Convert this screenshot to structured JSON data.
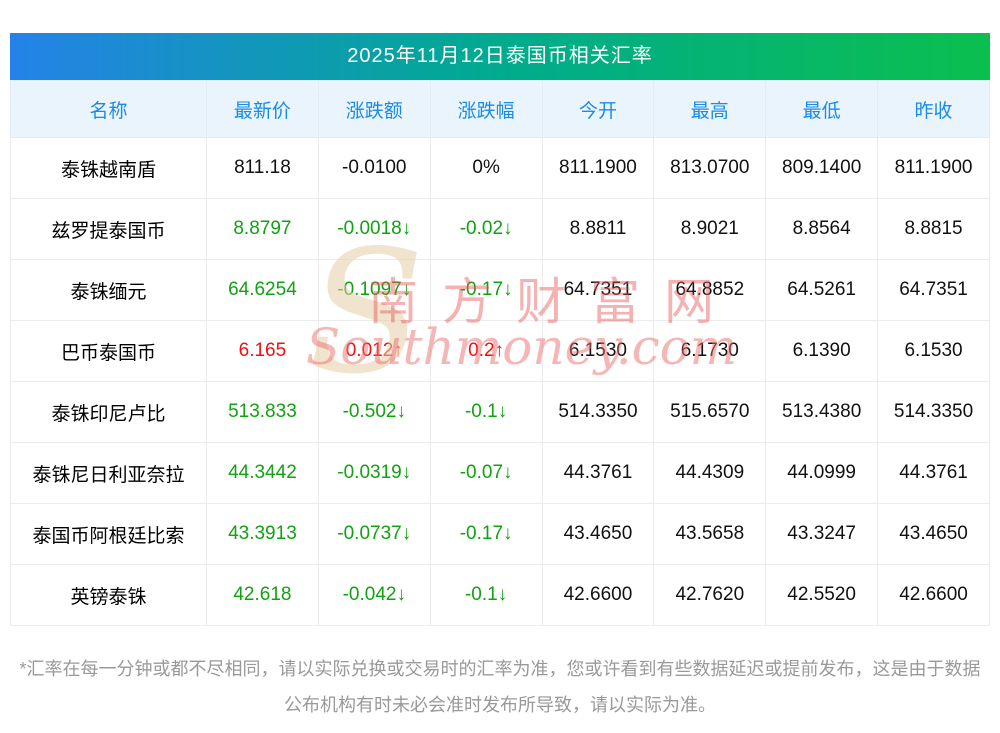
{
  "title": "2025年11月12日泰国币相关汇率",
  "chart_data": {
    "type": "table",
    "title": "2025年11月12日泰国币相关汇率",
    "columns": [
      "名称",
      "最新价",
      "涨跌额",
      "涨跌幅",
      "今开",
      "最高",
      "最低",
      "昨收"
    ],
    "rows": [
      {
        "name": "泰铢越南盾",
        "trend": "flat",
        "cells": [
          "811.18",
          "-0.0100",
          "0%",
          "811.1900",
          "813.0700",
          "809.1400",
          "811.1900"
        ]
      },
      {
        "name": "兹罗提泰国币",
        "trend": "down",
        "cells": [
          "8.8797",
          "-0.0018↓",
          "-0.02↓",
          "8.8811",
          "8.9021",
          "8.8564",
          "8.8815"
        ]
      },
      {
        "name": "泰铢缅元",
        "trend": "down",
        "cells": [
          "64.6254",
          "-0.1097↓",
          "-0.17↓",
          "64.7351",
          "64.8852",
          "64.5261",
          "64.7351"
        ]
      },
      {
        "name": "巴币泰国币",
        "trend": "up",
        "cells": [
          "6.165",
          "0.012↑",
          "0.2↑",
          "6.1530",
          "6.1730",
          "6.1390",
          "6.1530"
        ]
      },
      {
        "name": "泰铢印尼卢比",
        "trend": "down",
        "cells": [
          "513.833",
          "-0.502↓",
          "-0.1↓",
          "514.3350",
          "515.6570",
          "513.4380",
          "514.3350"
        ]
      },
      {
        "name": "泰铢尼日利亚奈拉",
        "trend": "down",
        "cells": [
          "44.3442",
          "-0.0319↓",
          "-0.07↓",
          "44.3761",
          "44.4309",
          "44.0999",
          "44.3761"
        ]
      },
      {
        "name": "泰国币阿根廷比索",
        "trend": "down",
        "cells": [
          "43.3913",
          "-0.0737↓",
          "-0.17↓",
          "43.4650",
          "43.5658",
          "43.3247",
          "43.4650"
        ]
      },
      {
        "name": "英镑泰铢",
        "trend": "down",
        "cells": [
          "42.618",
          "-0.042↓",
          "-0.1↓",
          "42.6600",
          "42.7620",
          "42.5520",
          "42.6600"
        ]
      }
    ]
  },
  "watermark": {
    "cn": "南方财富网",
    "en": "Southmoney.com",
    "s_glyph": "S"
  },
  "footnote": "*汇率在每一分钟或都不尽相同，请以实际兑换或交易时的汇率为准，您或许看到有些数据延迟或提前发布，这是由于数据公布机构有时未必会准时发布所导致，请以实际为准。",
  "colors": {
    "up": "#ee1111",
    "down": "#12a112",
    "flat": "#111111",
    "header_text": "#1b8be4",
    "header_bg": "#e9f4fd",
    "gradient_start": "#2482e8",
    "gradient_mid": "#00ab8e",
    "gradient_end": "#0bbf4e"
  }
}
